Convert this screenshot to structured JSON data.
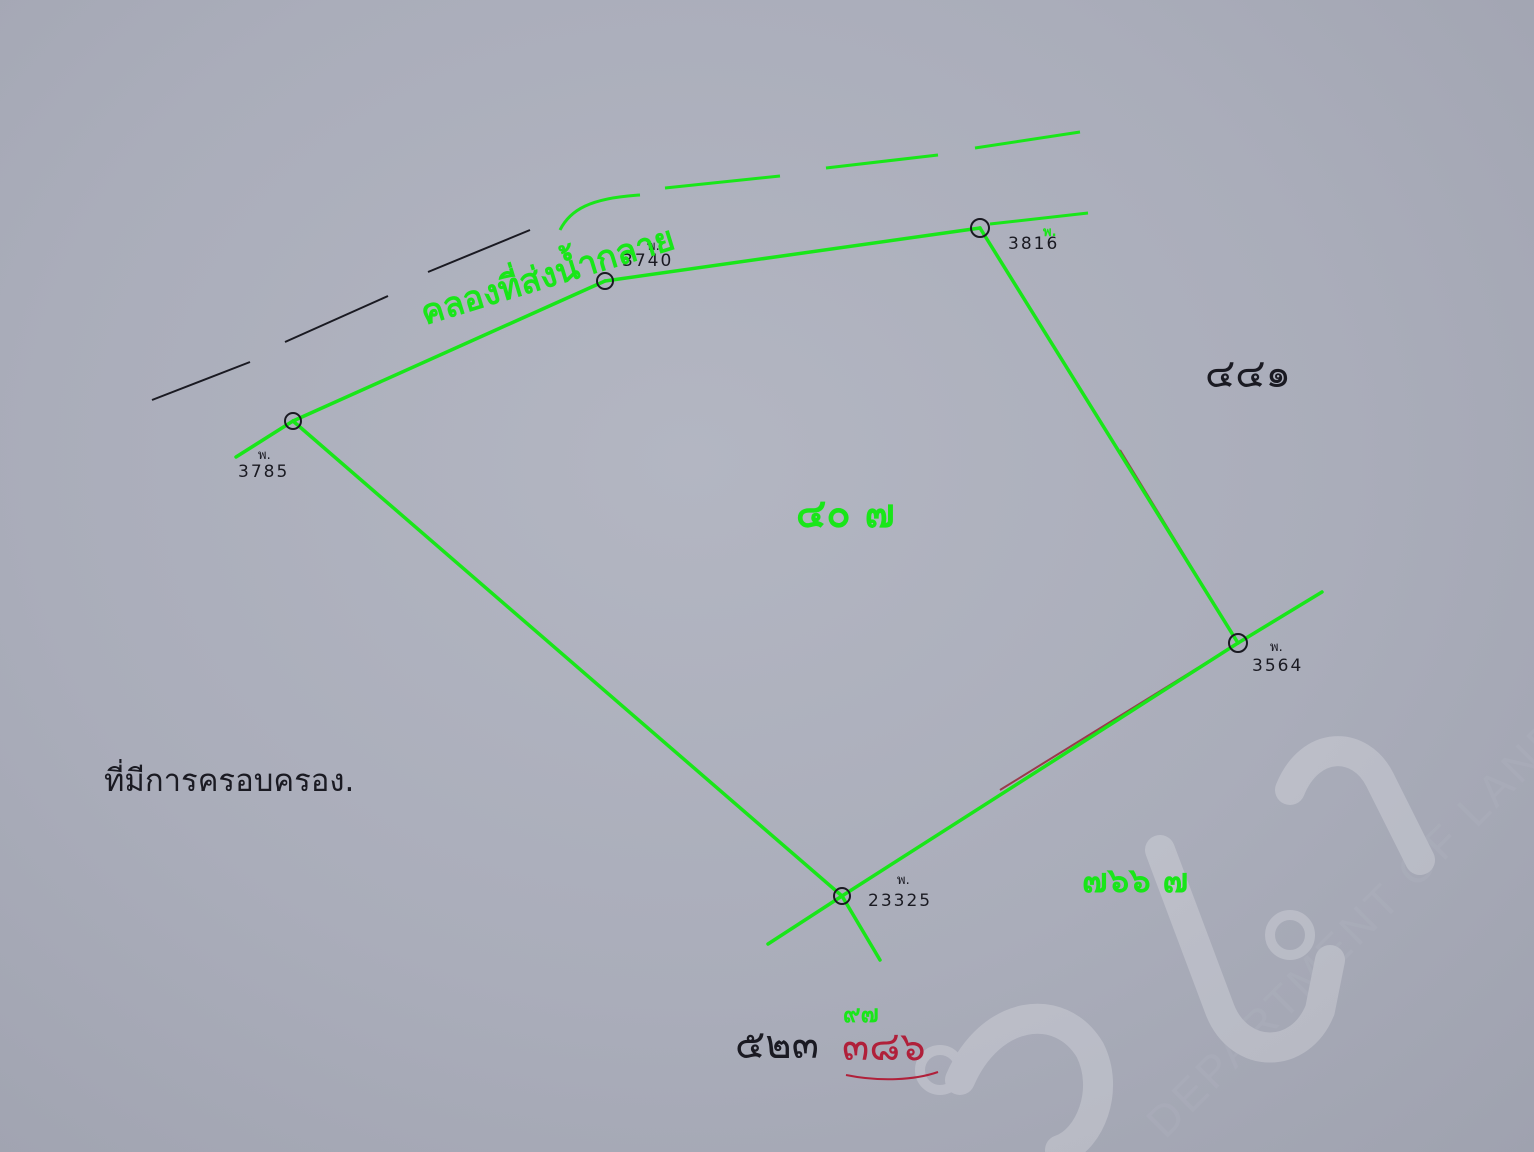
{
  "map": {
    "canal_label": "คลองที่ส่งน้ำกลาย",
    "occupied_area_note": "ที่มีการครอบครอง.",
    "parcel_number": "๔๐ ๗",
    "neighbor_parcel_east": "๔๔๑",
    "neighbor_parcel_south_east": "๗๖๖ ๗",
    "bottom_black_text": "๕๒๓",
    "bottom_red_top": "๙๗",
    "bottom_red_bottom": "๓๘๖",
    "marker_prefix": "พ.",
    "markers": [
      {
        "id": "m3785",
        "number": "3785"
      },
      {
        "id": "m3740",
        "number": "3740"
      },
      {
        "id": "m3816",
        "number": "3816"
      },
      {
        "id": "m3564",
        "number": "3564"
      },
      {
        "id": "m23325",
        "number": "23325"
      }
    ],
    "watermark_text": "DEPARTMENT OF LAND",
    "colors": {
      "boundary": "#19e619",
      "ink": "#1a1a22",
      "red_ink": "#b0203a",
      "paper": "#aaadba"
    }
  }
}
